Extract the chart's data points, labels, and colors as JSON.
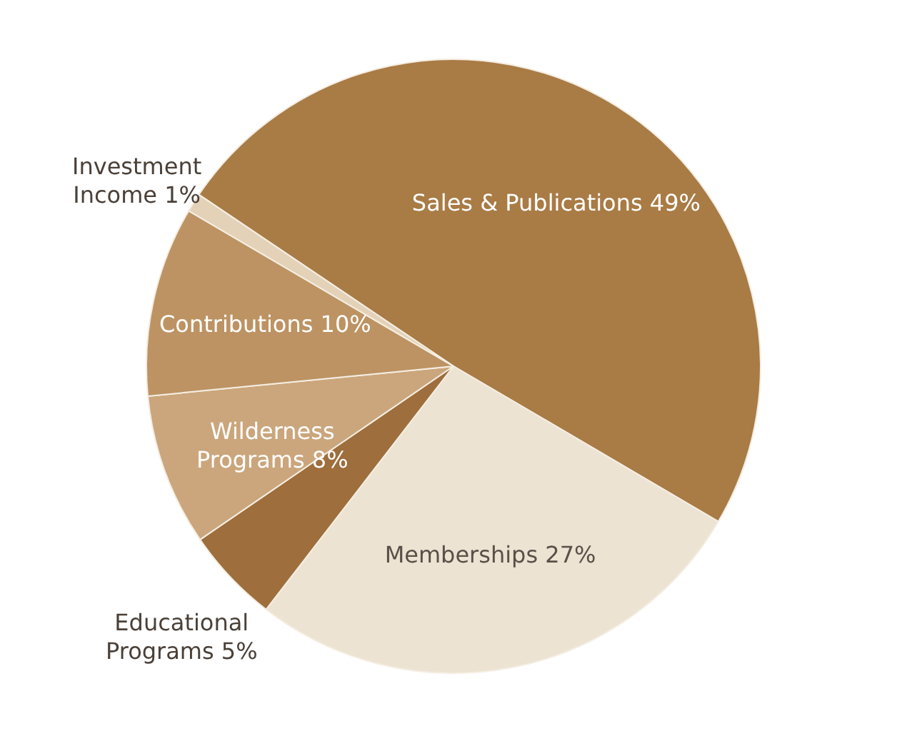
{
  "chart_data": {
    "type": "pie",
    "categories": [
      "Sales & Publications",
      "Memberships",
      "Educational Programs",
      "Wilderness Programs",
      "Contributions",
      "Investment Income"
    ],
    "values": [
      49,
      27,
      5,
      8,
      10,
      1
    ],
    "value_labels": [
      "49%",
      "27%",
      "5%",
      "8%",
      "10%",
      "1%"
    ],
    "colors": [
      "#a97b45",
      "#ede3d2",
      "#9e6e3c",
      "#cba67c",
      "#bd9363",
      "#e3d2b8"
    ]
  }
}
